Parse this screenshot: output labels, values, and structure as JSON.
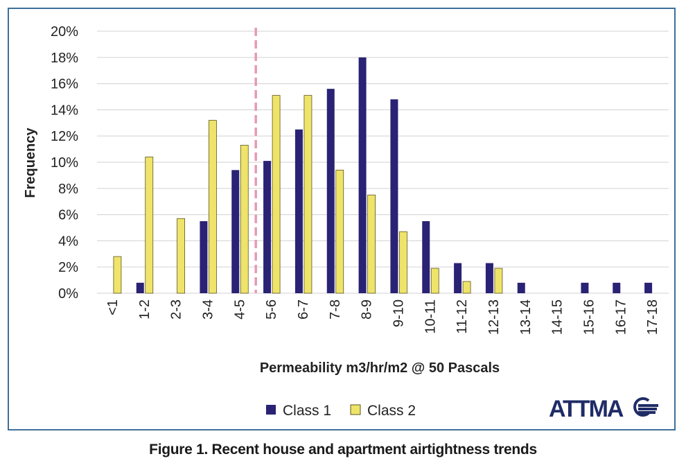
{
  "caption": "Figure 1. Recent house and apartment airtightness trends",
  "logo_text": "ATTMA",
  "colors": {
    "class1": "#2a2274",
    "class2": "#efe46a",
    "class2_edge": "#5a5520",
    "grid": "#d9d9d9",
    "threshold_line": "#e59ab6",
    "frame": "#3d6f9b"
  },
  "chart_data": {
    "type": "bar",
    "categories": [
      "<1",
      "1-2",
      "2-3",
      "3-4",
      "4-5",
      "5-6",
      "6-7",
      "7-8",
      "8-9",
      "9-10",
      "10-11",
      "11-12",
      "12-13",
      "13-14",
      "14-15",
      "15-16",
      "16-17",
      "17-18"
    ],
    "series": [
      {
        "name": "Class 1",
        "values": [
          0,
          0.8,
          0,
          5.5,
          9.4,
          10.1,
          12.5,
          15.6,
          18.0,
          14.8,
          5.5,
          2.3,
          2.3,
          0.8,
          0,
          0.8,
          0.8,
          0.8
        ]
      },
      {
        "name": "Class 2",
        "values": [
          2.8,
          10.4,
          5.7,
          13.2,
          11.3,
          15.1,
          15.1,
          9.4,
          7.5,
          4.7,
          1.9,
          0.9,
          1.9,
          0,
          0,
          0,
          0,
          0
        ]
      }
    ],
    "xlabel": "Permeability m3/hr/m2 @ 50 Pascals",
    "ylabel": "Frequency",
    "ylim": [
      0,
      20
    ],
    "yticks": [
      "0%",
      "2%",
      "4%",
      "6%",
      "8%",
      "10%",
      "12%",
      "14%",
      "16%",
      "18%",
      "20%"
    ],
    "threshold_line_between": [
      "4-5",
      "5-6"
    ],
    "grid": true,
    "legend_position": "bottom"
  }
}
